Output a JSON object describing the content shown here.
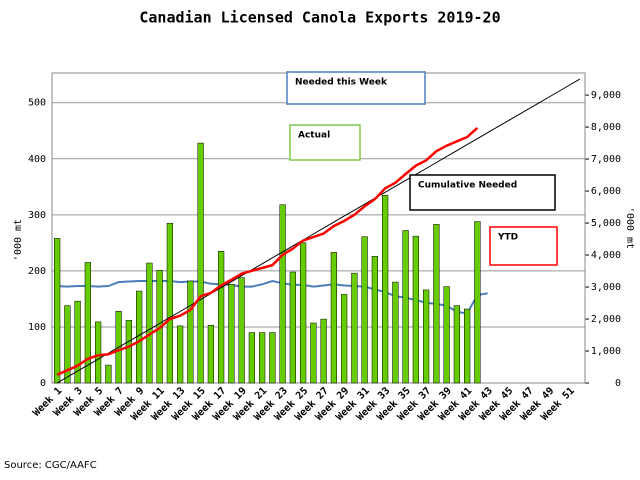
{
  "chart_data": {
    "type": "bar",
    "title": "Canadian Licensed Canola Exports 2019-20",
    "y_label": "'000 mt",
    "y2_label": "'000 mt",
    "source": "Source: CGC/AAFC",
    "categories": [
      "Week 1",
      null,
      "Week 3",
      null,
      "Week 5",
      null,
      "Week 7",
      null,
      "Week 9",
      null,
      "Week 11",
      null,
      "Week 13",
      null,
      "Week 15",
      null,
      "Week 17",
      null,
      "Week 19",
      null,
      "Week 21",
      null,
      "Week 23",
      null,
      "Week 25",
      null,
      "Week 27",
      null,
      "Week 29",
      null,
      "Week 31",
      null,
      "Week 33",
      null,
      "Week 35",
      null,
      "Week 37",
      null,
      "Week 39",
      null,
      "Week 41",
      null,
      "Week 43",
      null,
      "Week 45",
      null,
      "Week 47",
      null,
      "Week 49",
      null,
      "Week 51",
      null
    ],
    "ylim": [
      0,
      553
    ],
    "yticks": [
      0,
      100,
      200,
      300,
      400,
      500
    ],
    "y2lim": [
      0,
      9690
    ],
    "y2ticks": [
      0,
      {
        "value": 1000,
        "label": "1,000"
      },
      {
        "value": 2000,
        "label": "2,000"
      },
      {
        "value": 3000,
        "label": "3,000"
      },
      {
        "value": 4000,
        "label": "4,000"
      },
      {
        "value": 5000,
        "label": "5,000"
      },
      {
        "value": 6000,
        "label": "6,000"
      },
      {
        "value": 7000,
        "label": "7,000"
      },
      {
        "value": 8000,
        "label": "8,000"
      },
      {
        "value": 9000,
        "label": "9,000"
      }
    ],
    "grid": true,
    "series": [
      {
        "name": "Needed this Week",
        "type": "line",
        "color": "#4a7ebb",
        "values": [
          173,
          172,
          173,
          173,
          172,
          173,
          180,
          181,
          182,
          182,
          182,
          182,
          180,
          181,
          181,
          177,
          176,
          175,
          172,
          172,
          176,
          182,
          178,
          175,
          175,
          172,
          174,
          176,
          174,
          173,
          172,
          167,
          162,
          155,
          152,
          148,
          143,
          141,
          138,
          127,
          124,
          157,
          160,
          null,
          null,
          null,
          null,
          null,
          null,
          null,
          null,
          null
        ]
      },
      {
        "name": "Actual",
        "type": "bar",
        "color": "#66cc00",
        "values": [
          258,
          138,
          146,
          215,
          109,
          32,
          128,
          112,
          164,
          214,
          201,
          285,
          102,
          182,
          428,
          103,
          235,
          176,
          188,
          90,
          90,
          90,
          318,
          198,
          250,
          107,
          114,
          233,
          158,
          196,
          261,
          226,
          335,
          180,
          272,
          262,
          166,
          283,
          172,
          138,
          132,
          288,
          null,
          null,
          null,
          null,
          null,
          null,
          null,
          null,
          null,
          null
        ]
      },
      {
        "name": "Cumulative Needed",
        "type": "line",
        "axis": "y2",
        "color": "#000000",
        "values": [
          0,
          186,
          373,
          559,
          745,
          931,
          1118,
          1304,
          1490,
          1676,
          1863,
          2049,
          2235,
          2422,
          2608,
          2794,
          2980,
          3167,
          3353,
          3539,
          3725,
          3912,
          4098,
          4284,
          4471,
          4657,
          4843,
          5029,
          5216,
          5402,
          5588,
          5775,
          5961,
          6147,
          6333,
          6520,
          6706,
          6892,
          7078,
          7265,
          7451,
          7637,
          7824,
          8010,
          8196,
          8382,
          8569,
          8755,
          8941,
          9127,
          9314,
          9500
        ]
      },
      {
        "name": "YTD",
        "type": "line",
        "axis": "y2",
        "color": "#ff0000",
        "values": [
          258,
          396,
          542,
          757,
          866,
          898,
          1026,
          1138,
          1302,
          1516,
          1717,
          2002,
          2104,
          2286,
          2714,
          2817,
          3052,
          3228,
          3416,
          3506,
          3596,
          3686,
          4004,
          4202,
          4452,
          4559,
          4673,
          4906,
          5064,
          5260,
          5521,
          5747,
          6082,
          6262,
          6534,
          6796,
          6962,
          7245,
          7417,
          7555,
          7687,
          7975,
          null,
          null,
          null,
          null,
          null,
          null,
          null,
          null,
          null,
          null
        ]
      }
    ]
  }
}
